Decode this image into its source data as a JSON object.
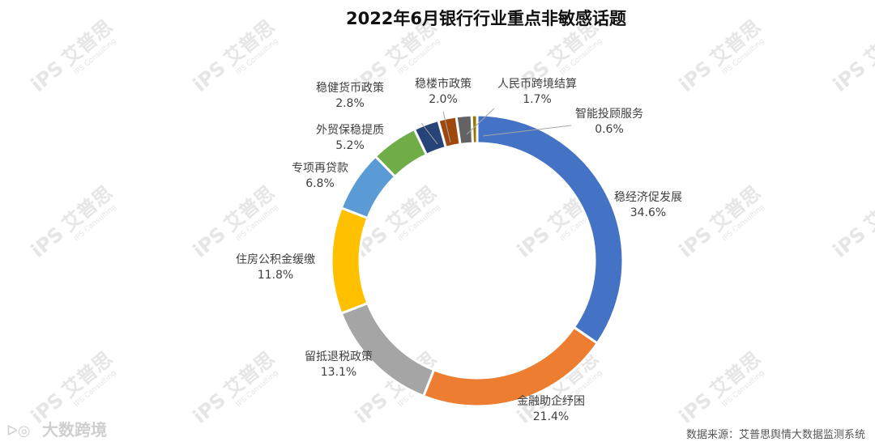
{
  "chart_data": {
    "type": "pie",
    "subtype": "donut",
    "title": "2022年6月银行行业重点非敏感话题",
    "categories": [
      "稳经济促发展",
      "金融助企纾困",
      "留抵退税政策",
      "住房公积金缓缴",
      "专项再贷款",
      "外贸保稳提质",
      "稳健货币政策",
      "稳楼市政策",
      "人民币跨境结算",
      "智能投顾服务"
    ],
    "values": [
      34.6,
      21.4,
      13.1,
      11.8,
      6.8,
      5.2,
      2.8,
      2.0,
      1.7,
      0.6
    ],
    "value_labels": [
      "34.6%",
      "21.4%",
      "13.1%",
      "11.8%",
      "6.8%",
      "5.2%",
      "2.8%",
      "2.0%",
      "1.7%",
      "0.6%"
    ],
    "colors": [
      "#4472C4",
      "#ED7D31",
      "#A5A5A5",
      "#FFC000",
      "#5B9BD5",
      "#70AD47",
      "#264478",
      "#9E480E",
      "#636363",
      "#997300"
    ],
    "legend": "none"
  },
  "footer": {
    "source": "数据来源：艾普思舆情大数据监测系统",
    "brand": "大数跨境"
  },
  "watermark": {
    "text": "艾普思",
    "logo": "iPS",
    "sub": "IPS Consulting"
  }
}
